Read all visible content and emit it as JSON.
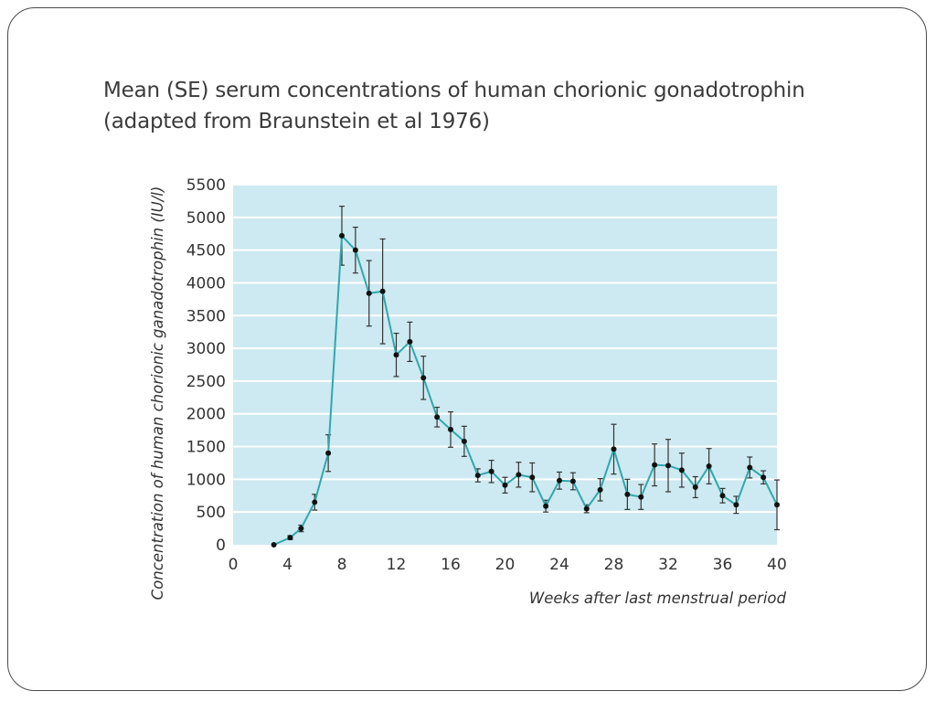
{
  "slide": {
    "title_line1": "Mean (SE) serum concentrations of human chorionic gonadotrophin",
    "title_line2": "(adapted from Braunstein et al 1976)"
  },
  "chart_data": {
    "type": "line",
    "title": "",
    "xlabel": "Weeks after last menstrual period",
    "ylabel": "Concentration of human chorionic ganadotrophin (IU/l)",
    "xlim": [
      0,
      40
    ],
    "ylim": [
      0,
      5500
    ],
    "xticks": [
      0,
      4,
      8,
      12,
      16,
      20,
      24,
      28,
      32,
      36,
      40
    ],
    "yticks": [
      0,
      500,
      1000,
      1500,
      2000,
      2500,
      3000,
      3500,
      4000,
      4500,
      5000,
      5500
    ],
    "grid": "horizontal",
    "colors": {
      "plot_background": "#cde9f1",
      "line": "#2fa8ad",
      "grid": "#ffffff",
      "marker": "#111111",
      "error_bar": "#333333"
    },
    "series": [
      {
        "points": [
          {
            "x": 3,
            "y": 0,
            "se": 0
          },
          {
            "x": 4.2,
            "y": 110,
            "se": 30
          },
          {
            "x": 5,
            "y": 250,
            "se": 50
          },
          {
            "x": 6,
            "y": 650,
            "se": 120
          },
          {
            "x": 7,
            "y": 1400,
            "se": 280
          },
          {
            "x": 8,
            "y": 4720,
            "se": 450
          },
          {
            "x": 9,
            "y": 4500,
            "se": 350
          },
          {
            "x": 10,
            "y": 3840,
            "se": 500
          },
          {
            "x": 11,
            "y": 3870,
            "se": 800
          },
          {
            "x": 12,
            "y": 2900,
            "se": 330
          },
          {
            "x": 13,
            "y": 3100,
            "se": 300
          },
          {
            "x": 14,
            "y": 2550,
            "se": 330
          },
          {
            "x": 15,
            "y": 1950,
            "se": 150
          },
          {
            "x": 16,
            "y": 1760,
            "se": 270
          },
          {
            "x": 17,
            "y": 1580,
            "se": 230
          },
          {
            "x": 18,
            "y": 1060,
            "se": 100
          },
          {
            "x": 19,
            "y": 1120,
            "se": 170
          },
          {
            "x": 20,
            "y": 910,
            "se": 120
          },
          {
            "x": 21,
            "y": 1070,
            "se": 190
          },
          {
            "x": 22,
            "y": 1030,
            "se": 220
          },
          {
            "x": 23,
            "y": 590,
            "se": 90
          },
          {
            "x": 24,
            "y": 980,
            "se": 130
          },
          {
            "x": 25,
            "y": 970,
            "se": 130
          },
          {
            "x": 26,
            "y": 550,
            "se": 60
          },
          {
            "x": 27,
            "y": 840,
            "se": 170
          },
          {
            "x": 28,
            "y": 1460,
            "se": 380
          },
          {
            "x": 29,
            "y": 770,
            "se": 230
          },
          {
            "x": 30,
            "y": 730,
            "se": 190
          },
          {
            "x": 31,
            "y": 1220,
            "se": 320
          },
          {
            "x": 32,
            "y": 1210,
            "se": 400
          },
          {
            "x": 33,
            "y": 1140,
            "se": 260
          },
          {
            "x": 34,
            "y": 880,
            "se": 160
          },
          {
            "x": 35,
            "y": 1200,
            "se": 270
          },
          {
            "x": 36,
            "y": 750,
            "se": 110
          },
          {
            "x": 37,
            "y": 610,
            "se": 130
          },
          {
            "x": 38,
            "y": 1180,
            "se": 160
          },
          {
            "x": 39,
            "y": 1030,
            "se": 100
          },
          {
            "x": 40,
            "y": 610,
            "se": 380
          }
        ]
      }
    ]
  }
}
